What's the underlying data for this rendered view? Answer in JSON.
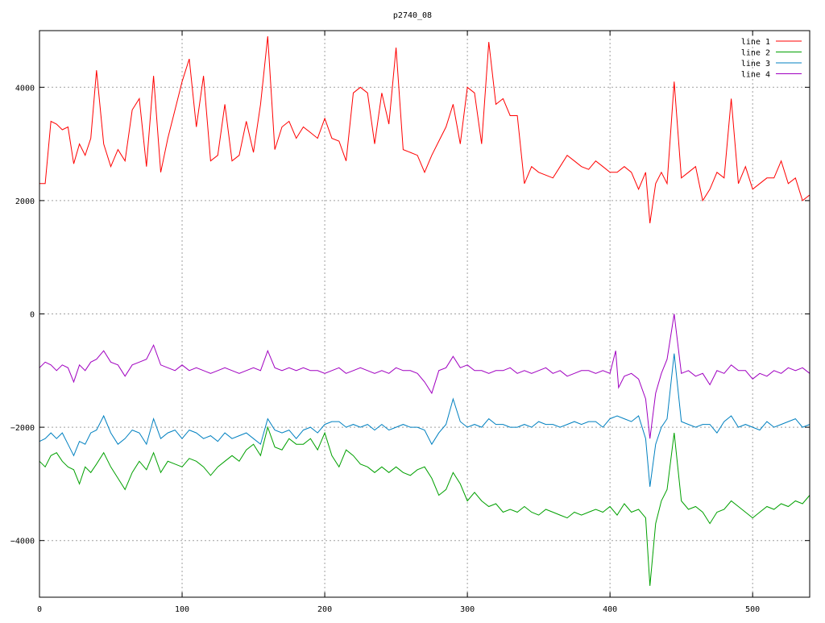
{
  "chart_data": {
    "type": "line",
    "title": "p2740_08",
    "xlabel": "",
    "ylabel": "",
    "xlim": [
      0,
      540
    ],
    "ylim": [
      -5000,
      5000
    ],
    "xticks": [
      0,
      100,
      200,
      300,
      400,
      500
    ],
    "yticks": [
      -4000,
      -2000,
      0,
      2000,
      4000
    ],
    "grid": true,
    "legend_position": "top-right",
    "series": [
      {
        "name": "line 1",
        "color": "#ff0000",
        "x": [
          0,
          4,
          8,
          12,
          16,
          20,
          24,
          28,
          32,
          36,
          40,
          45,
          50,
          55,
          60,
          65,
          70,
          75,
          80,
          85,
          90,
          95,
          100,
          105,
          110,
          115,
          120,
          125,
          130,
          135,
          140,
          145,
          150,
          155,
          160,
          165,
          170,
          175,
          180,
          185,
          190,
          195,
          200,
          205,
          210,
          215,
          220,
          225,
          230,
          235,
          240,
          245,
          250,
          255,
          260,
          265,
          270,
          275,
          280,
          285,
          290,
          295,
          300,
          305,
          310,
          315,
          320,
          325,
          330,
          335,
          340,
          345,
          350,
          355,
          360,
          365,
          370,
          375,
          380,
          385,
          390,
          395,
          400,
          405,
          410,
          415,
          420,
          425,
          428,
          432,
          436,
          440,
          445,
          450,
          455,
          460,
          465,
          470,
          475,
          480,
          485,
          490,
          495,
          500,
          505,
          510,
          515,
          520,
          525,
          530,
          535,
          540
        ],
        "values": [
          2300,
          2300,
          3400,
          3350,
          3250,
          3300,
          2650,
          3000,
          2800,
          3100,
          4300,
          3000,
          2600,
          2900,
          2700,
          3600,
          3800,
          2600,
          4200,
          2500,
          3100,
          3600,
          4100,
          4500,
          3300,
          4200,
          2700,
          2800,
          3700,
          2700,
          2800,
          3400,
          2850,
          3700,
          4900,
          2900,
          3300,
          3400,
          3100,
          3300,
          3200,
          3100,
          3450,
          3100,
          3050,
          2700,
          3900,
          4000,
          3900,
          3000,
          3900,
          3350,
          4700,
          2900,
          2850,
          2800,
          2500,
          2800,
          3050,
          3300,
          3700,
          3000,
          4000,
          3900,
          3000,
          4800,
          3700,
          3800,
          3500,
          3500,
          2300,
          2600,
          2500,
          2450,
          2400,
          2600,
          2800,
          2700,
          2600,
          2550,
          2700,
          2600,
          2500,
          2500,
          2600,
          2500,
          2200,
          2500,
          1600,
          2300,
          2500,
          2300,
          4100,
          2400,
          2500,
          2600,
          2000,
          2200,
          2500,
          2400,
          3800,
          2300,
          2600,
          2200,
          2300,
          2400,
          2400,
          2700,
          2300,
          2400,
          2000,
          2100
        ]
      },
      {
        "name": "line 2",
        "color": "#00a000",
        "x": [
          0,
          4,
          8,
          12,
          16,
          20,
          24,
          28,
          32,
          36,
          40,
          45,
          50,
          55,
          60,
          65,
          70,
          75,
          80,
          85,
          90,
          95,
          100,
          105,
          110,
          115,
          120,
          125,
          130,
          135,
          140,
          145,
          150,
          155,
          160,
          165,
          170,
          175,
          180,
          185,
          190,
          195,
          200,
          205,
          210,
          215,
          220,
          225,
          230,
          235,
          240,
          245,
          250,
          255,
          260,
          265,
          270,
          275,
          280,
          285,
          290,
          295,
          300,
          305,
          310,
          315,
          320,
          325,
          330,
          335,
          340,
          345,
          350,
          355,
          360,
          365,
          370,
          375,
          380,
          385,
          390,
          395,
          400,
          405,
          410,
          415,
          420,
          425,
          428,
          432,
          436,
          440,
          445,
          450,
          455,
          460,
          465,
          470,
          475,
          480,
          485,
          490,
          495,
          500,
          505,
          510,
          515,
          520,
          525,
          530,
          535,
          540
        ],
        "values": [
          -2600,
          -2700,
          -2500,
          -2450,
          -2600,
          -2700,
          -2750,
          -3000,
          -2700,
          -2800,
          -2650,
          -2450,
          -2700,
          -2900,
          -3100,
          -2800,
          -2600,
          -2750,
          -2450,
          -2800,
          -2600,
          -2650,
          -2700,
          -2550,
          -2600,
          -2700,
          -2850,
          -2700,
          -2600,
          -2500,
          -2600,
          -2400,
          -2300,
          -2500,
          -2000,
          -2350,
          -2400,
          -2200,
          -2300,
          -2300,
          -2200,
          -2400,
          -2100,
          -2500,
          -2700,
          -2400,
          -2500,
          -2650,
          -2700,
          -2800,
          -2700,
          -2800,
          -2700,
          -2800,
          -2850,
          -2750,
          -2700,
          -2900,
          -3200,
          -3100,
          -2800,
          -3000,
          -3300,
          -3150,
          -3300,
          -3400,
          -3350,
          -3500,
          -3450,
          -3500,
          -3400,
          -3500,
          -3550,
          -3450,
          -3500,
          -3550,
          -3600,
          -3500,
          -3550,
          -3500,
          -3450,
          -3500,
          -3400,
          -3550,
          -3350,
          -3500,
          -3450,
          -3600,
          -4800,
          -3700,
          -3300,
          -3100,
          -2100,
          -3300,
          -3450,
          -3400,
          -3500,
          -3700,
          -3500,
          -3450,
          -3300,
          -3400,
          -3500,
          -3600,
          -3500,
          -3400,
          -3450,
          -3350,
          -3400,
          -3300,
          -3350,
          -3200
        ]
      },
      {
        "name": "line 3",
        "color": "#0080c0",
        "x": [
          0,
          4,
          8,
          12,
          16,
          20,
          24,
          28,
          32,
          36,
          40,
          45,
          50,
          55,
          60,
          65,
          70,
          75,
          80,
          85,
          90,
          95,
          100,
          105,
          110,
          115,
          120,
          125,
          130,
          135,
          140,
          145,
          150,
          155,
          160,
          165,
          170,
          175,
          180,
          185,
          190,
          195,
          200,
          205,
          210,
          215,
          220,
          225,
          230,
          235,
          240,
          245,
          250,
          255,
          260,
          265,
          270,
          275,
          280,
          285,
          290,
          295,
          300,
          305,
          310,
          315,
          320,
          325,
          330,
          335,
          340,
          345,
          350,
          355,
          360,
          365,
          370,
          375,
          380,
          385,
          390,
          395,
          400,
          405,
          410,
          415,
          420,
          425,
          428,
          432,
          436,
          440,
          445,
          450,
          455,
          460,
          465,
          470,
          475,
          480,
          485,
          490,
          495,
          500,
          505,
          510,
          515,
          520,
          525,
          530,
          535,
          540
        ],
        "values": [
          -2250,
          -2200,
          -2100,
          -2200,
          -2100,
          -2300,
          -2500,
          -2250,
          -2300,
          -2100,
          -2050,
          -1800,
          -2100,
          -2300,
          -2200,
          -2050,
          -2100,
          -2300,
          -1850,
          -2200,
          -2100,
          -2050,
          -2200,
          -2050,
          -2100,
          -2200,
          -2150,
          -2250,
          -2100,
          -2200,
          -2150,
          -2100,
          -2200,
          -2300,
          -1850,
          -2050,
          -2100,
          -2050,
          -2200,
          -2050,
          -2000,
          -2100,
          -1950,
          -1900,
          -1900,
          -2000,
          -1950,
          -2000,
          -1950,
          -2050,
          -1950,
          -2050,
          -2000,
          -1950,
          -2000,
          -2000,
          -2050,
          -2300,
          -2100,
          -1950,
          -1500,
          -1900,
          -2000,
          -1950,
          -2000,
          -1850,
          -1950,
          -1950,
          -2000,
          -2000,
          -1950,
          -2000,
          -1900,
          -1950,
          -1950,
          -2000,
          -1950,
          -1900,
          -1950,
          -1900,
          -1900,
          -2000,
          -1850,
          -1800,
          -1850,
          -1900,
          -1800,
          -2200,
          -3050,
          -2300,
          -2000,
          -1850,
          -700,
          -1900,
          -1950,
          -2000,
          -1950,
          -1950,
          -2100,
          -1900,
          -1800,
          -2000,
          -1950,
          -2000,
          -2050,
          -1900,
          -2000,
          -1950,
          -1900,
          -1850,
          -2000,
          -1950
        ]
      },
      {
        "name": "line 4",
        "color": "#a000c0",
        "x": [
          0,
          4,
          8,
          12,
          16,
          20,
          24,
          28,
          32,
          36,
          40,
          45,
          50,
          55,
          60,
          65,
          70,
          75,
          80,
          85,
          90,
          95,
          100,
          105,
          110,
          115,
          120,
          125,
          130,
          135,
          140,
          145,
          150,
          155,
          160,
          165,
          170,
          175,
          180,
          185,
          190,
          195,
          200,
          205,
          210,
          215,
          220,
          225,
          230,
          235,
          240,
          245,
          250,
          255,
          260,
          265,
          270,
          275,
          280,
          285,
          290,
          295,
          300,
          305,
          310,
          315,
          320,
          325,
          330,
          335,
          340,
          345,
          350,
          355,
          360,
          365,
          370,
          375,
          380,
          385,
          390,
          395,
          400,
          404,
          406,
          410,
          415,
          420,
          425,
          428,
          432,
          436,
          440,
          445,
          450,
          455,
          460,
          465,
          470,
          475,
          480,
          485,
          490,
          495,
          500,
          505,
          510,
          515,
          520,
          525,
          530,
          535,
          540
        ],
        "values": [
          -950,
          -850,
          -900,
          -1000,
          -900,
          -950,
          -1200,
          -900,
          -1000,
          -850,
          -800,
          -650,
          -850,
          -900,
          -1100,
          -900,
          -850,
          -800,
          -550,
          -900,
          -950,
          -1000,
          -900,
          -1000,
          -950,
          -1000,
          -1050,
          -1000,
          -950,
          -1000,
          -1050,
          -1000,
          -950,
          -1000,
          -650,
          -950,
          -1000,
          -950,
          -1000,
          -950,
          -1000,
          -1000,
          -1050,
          -1000,
          -950,
          -1050,
          -1000,
          -950,
          -1000,
          -1050,
          -1000,
          -1050,
          -950,
          -1000,
          -1000,
          -1050,
          -1200,
          -1400,
          -1000,
          -950,
          -750,
          -950,
          -900,
          -1000,
          -1000,
          -1050,
          -1000,
          -1000,
          -950,
          -1050,
          -1000,
          -1050,
          -1000,
          -950,
          -1050,
          -1000,
          -1100,
          -1050,
          -1000,
          -1000,
          -1050,
          -1000,
          -1050,
          -650,
          -1300,
          -1100,
          -1050,
          -1150,
          -1500,
          -2200,
          -1400,
          -1050,
          -800,
          0,
          -1050,
          -1000,
          -1100,
          -1050,
          -1250,
          -1000,
          -1050,
          -900,
          -1000,
          -1000,
          -1150,
          -1050,
          -1100,
          -1000,
          -1050,
          -950,
          -1000,
          -950,
          -1050
        ]
      }
    ]
  }
}
